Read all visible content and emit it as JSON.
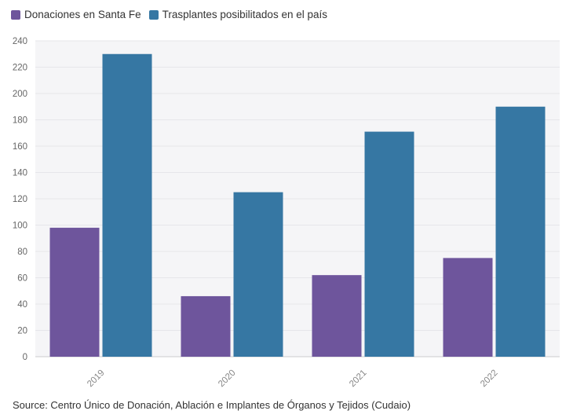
{
  "chart_data": {
    "type": "bar",
    "title": "",
    "xlabel": "",
    "ylabel": "",
    "ylim": [
      0,
      240
    ],
    "yticks": [
      0,
      20,
      40,
      60,
      80,
      100,
      120,
      140,
      160,
      180,
      200,
      220,
      240
    ],
    "categories": [
      "2019",
      "2020",
      "2021",
      "2022"
    ],
    "series": [
      {
        "name": "Donaciones en Santa Fe",
        "color": "#6e559c",
        "values": [
          98,
          46,
          62,
          75
        ]
      },
      {
        "name": "Trasplantes posibilitados en el país",
        "color": "#3677a3",
        "values": [
          230,
          125,
          171,
          190
        ]
      }
    ],
    "legend_position": "top-left",
    "grid": true
  },
  "source": "Source: Centro Único de Donación, Ablación e Implantes de Órganos y Tejidos (Cudaio)"
}
